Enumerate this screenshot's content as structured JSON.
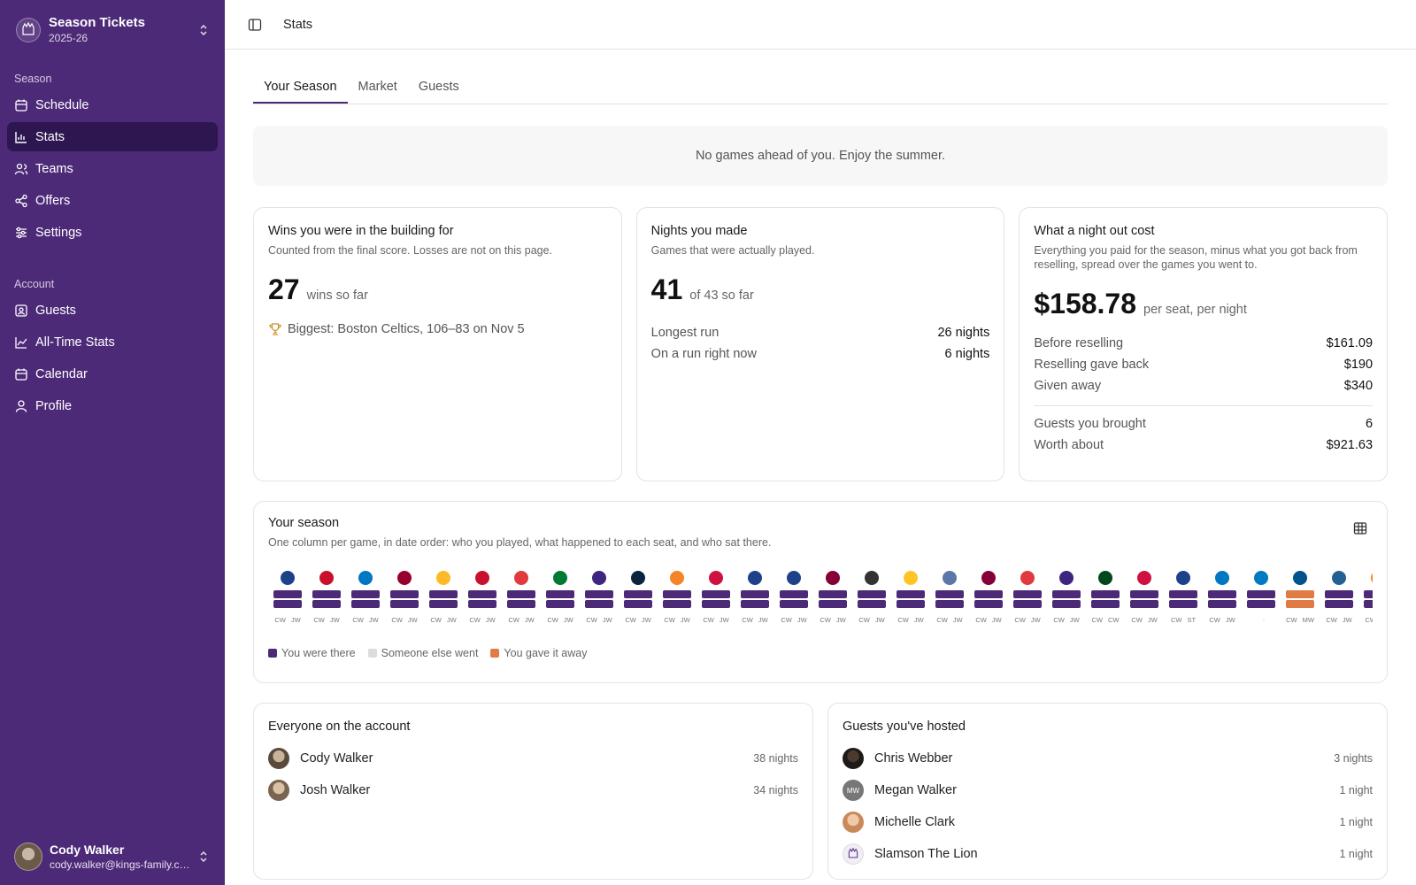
{
  "sidebar": {
    "brand_title": "Season Tickets",
    "brand_sub": "2025-26",
    "section_season": "Season",
    "section_account": "Account",
    "season_items": [
      {
        "label": "Schedule",
        "icon": "calendar-grid-icon"
      },
      {
        "label": "Stats",
        "icon": "bar-chart-icon",
        "active": true
      },
      {
        "label": "Teams",
        "icon": "users-icon"
      },
      {
        "label": "Offers",
        "icon": "share-icon"
      },
      {
        "label": "Settings",
        "icon": "sliders-icon"
      }
    ],
    "account_items": [
      {
        "label": "Guests",
        "icon": "contact-icon"
      },
      {
        "label": "All-Time Stats",
        "icon": "line-chart-icon"
      },
      {
        "label": "Calendar",
        "icon": "calendar-icon"
      },
      {
        "label": "Profile",
        "icon": "user-icon"
      }
    ],
    "user_name": "Cody Walker",
    "user_email": "cody.walker@kings-family.com"
  },
  "topbar": {
    "crumb": "Stats"
  },
  "tabs": [
    "Your Season",
    "Market",
    "Guests"
  ],
  "notice": "No games ahead of you. Enjoy the summer.",
  "wins": {
    "title": "Wins you were in the building for",
    "sub": "Counted from the final score. Losses are not on this page.",
    "num": "27",
    "cap": "wins so far",
    "biggest": "Biggest: Boston Celtics, 106–83 on Nov 5"
  },
  "nights": {
    "title": "Nights you made",
    "sub": "Games that were actually played.",
    "num": "41",
    "cap": "of 43 so far",
    "rows": [
      {
        "k": "Longest run",
        "v": "26 nights"
      },
      {
        "k": "On a run right now",
        "v": "6 nights"
      }
    ]
  },
  "cost": {
    "title": "What a night out cost",
    "sub": "Everything you paid for the season, minus what you got back from reselling, spread over the games you went to.",
    "num": "$158.78",
    "cap": "per seat, per night",
    "rows": [
      {
        "k": "Before reselling",
        "v": "$161.09"
      },
      {
        "k": "Reselling gave back",
        "v": "$190"
      },
      {
        "k": "Given away",
        "v": "$340"
      }
    ],
    "rows2": [
      {
        "k": "Guests you brought",
        "v": "6"
      },
      {
        "k": "Worth about",
        "v": "$921.63"
      }
    ]
  },
  "season": {
    "title": "Your season",
    "sub": "One column per game, in date order: who you played, what happened to each seat, and who sat there.",
    "legend": [
      "You were there",
      "Someone else went",
      "You gave it away"
    ],
    "colors": {
      "there": "#4d2a78",
      "else": "#dcdcdc",
      "gave": "#e07b45"
    },
    "games": [
      {
        "c": "#1d428a",
        "s": "there",
        "a": "CW",
        "b": "JW"
      },
      {
        "c": "#c8102e",
        "s": "there",
        "a": "CW",
        "b": "JW"
      },
      {
        "c": "#0077c0",
        "s": "there",
        "a": "CW",
        "b": "JW"
      },
      {
        "c": "#98002e",
        "s": "there",
        "a": "CW",
        "b": "JW"
      },
      {
        "c": "#fdb927",
        "s": "there",
        "a": "CW",
        "b": "JW"
      },
      {
        "c": "#c8102e",
        "s": "there",
        "a": "CW",
        "b": "JW"
      },
      {
        "c": "#e03a3e",
        "s": "there",
        "a": "CW",
        "b": "JW"
      },
      {
        "c": "#007a33",
        "s": "there",
        "a": "CW",
        "b": "JW"
      },
      {
        "c": "#3e2680",
        "s": "there",
        "a": "CW",
        "b": "JW"
      },
      {
        "c": "#0c2340",
        "s": "there",
        "a": "CW",
        "b": "JW"
      },
      {
        "c": "#f58426",
        "s": "there",
        "a": "CW",
        "b": "JW"
      },
      {
        "c": "#ce1141",
        "s": "there",
        "a": "CW",
        "b": "JW"
      },
      {
        "c": "#1d428a",
        "s": "there",
        "a": "CW",
        "b": "JW"
      },
      {
        "c": "#1d428a",
        "s": "there",
        "a": "CW",
        "b": "JW"
      },
      {
        "c": "#860038",
        "s": "there",
        "a": "CW",
        "b": "JW"
      },
      {
        "c": "#333333",
        "s": "there",
        "a": "CW",
        "b": "JW"
      },
      {
        "c": "#fec524",
        "s": "there",
        "a": "CW",
        "b": "JW"
      },
      {
        "c": "#5d76a9",
        "s": "there",
        "a": "CW",
        "b": "JW"
      },
      {
        "c": "#860038",
        "s": "there",
        "a": "CW",
        "b": "JW"
      },
      {
        "c": "#e03a3e",
        "s": "there",
        "a": "CW",
        "b": "JW"
      },
      {
        "c": "#3e2680",
        "s": "there",
        "a": "CW",
        "b": "JW"
      },
      {
        "c": "#00471b",
        "s": "there",
        "a": "CW",
        "b": "CW"
      },
      {
        "c": "#ce1141",
        "s": "there",
        "a": "CW",
        "b": "JW"
      },
      {
        "c": "#1d428a",
        "s": "there",
        "a": "CW",
        "b": "ST"
      },
      {
        "c": "#0077c0",
        "s": "there",
        "a": "CW",
        "b": "JW"
      },
      {
        "c": "#007ac1",
        "s": "there",
        "a": "",
        "b": "·"
      },
      {
        "c": "#00538c",
        "s": "gave",
        "a": "CW",
        "b": "MW"
      },
      {
        "c": "#236192",
        "s": "there",
        "a": "CW",
        "b": "JW"
      },
      {
        "c": "#f58426",
        "s": "there",
        "a": "CW",
        "b": "JW"
      }
    ]
  },
  "account": {
    "title": "Everyone on the account",
    "people": [
      {
        "name": "Cody Walker",
        "nights": "38 nights",
        "initials": ""
      },
      {
        "name": "Josh Walker",
        "nights": "34 nights",
        "initials": ""
      }
    ]
  },
  "guests": {
    "title": "Guests you've hosted",
    "people": [
      {
        "name": "Chris Webber",
        "nights": "3 nights",
        "initials": ""
      },
      {
        "name": "Megan Walker",
        "nights": "1 night",
        "initials": "MW"
      },
      {
        "name": "Michelle Clark",
        "nights": "1 night",
        "initials": ""
      },
      {
        "name": "Slamson The Lion",
        "nights": "1 night",
        "initials": ""
      }
    ]
  }
}
